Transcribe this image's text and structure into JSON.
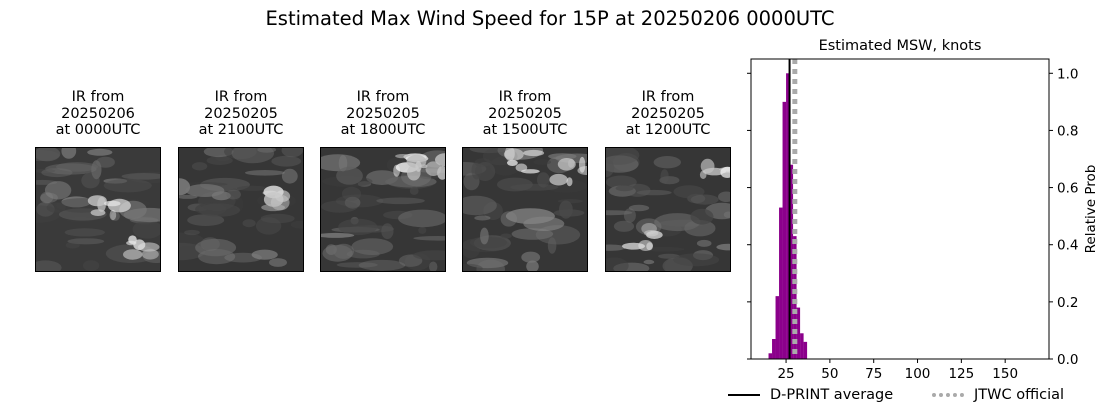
{
  "suptitle": "Estimated Max Wind Speed for 15P at 20250206 0000UTC",
  "ir_panels": [
    {
      "line1": "IR from",
      "line2": "20250206",
      "line3": "at 0000UTC"
    },
    {
      "line1": "IR from",
      "line2": "20250205",
      "line3": "at 2100UTC"
    },
    {
      "line1": "IR from",
      "line2": "20250205",
      "line3": "at 1800UTC"
    },
    {
      "line1": "IR from",
      "line2": "20250205",
      "line3": "at 1500UTC"
    },
    {
      "line1": "IR from",
      "line2": "20250205",
      "line3": "at 1200UTC"
    }
  ],
  "chart_data": {
    "type": "bar",
    "title": "Estimated MSW, knots",
    "xlabel": "",
    "ylabel": "Relative Prob",
    "xlim": [
      5,
      175
    ],
    "ylim": [
      0,
      1.05
    ],
    "xticks": [
      25,
      50,
      75,
      100,
      125,
      150
    ],
    "yticks": [
      0.0,
      0.2,
      0.4,
      0.6,
      0.8,
      1.0
    ],
    "ytick_labels": [
      "0.0",
      "0.2",
      "0.4",
      "0.6",
      "0.8",
      "1.0"
    ],
    "y_axis_side": "right",
    "bar_color": "#8b008b",
    "bin_width": 2,
    "bins": [
      {
        "x": 16,
        "y": 0.02
      },
      {
        "x": 18,
        "y": 0.07
      },
      {
        "x": 20,
        "y": 0.22
      },
      {
        "x": 22,
        "y": 0.53
      },
      {
        "x": 24,
        "y": 0.9
      },
      {
        "x": 26,
        "y": 1.0
      },
      {
        "x": 28,
        "y": 0.68
      },
      {
        "x": 30,
        "y": 0.43
      },
      {
        "x": 32,
        "y": 0.18
      },
      {
        "x": 34,
        "y": 0.09
      },
      {
        "x": 36,
        "y": 0.06
      }
    ],
    "dprint_average": 27,
    "jtwc_official": 30,
    "legend": {
      "position": "bottom",
      "items": [
        {
          "label": "D-PRINT average",
          "style": "solid",
          "color": "#000000"
        },
        {
          "label": "JTWC official",
          "style": "dotted",
          "color": "#aaaaaa"
        }
      ]
    }
  }
}
